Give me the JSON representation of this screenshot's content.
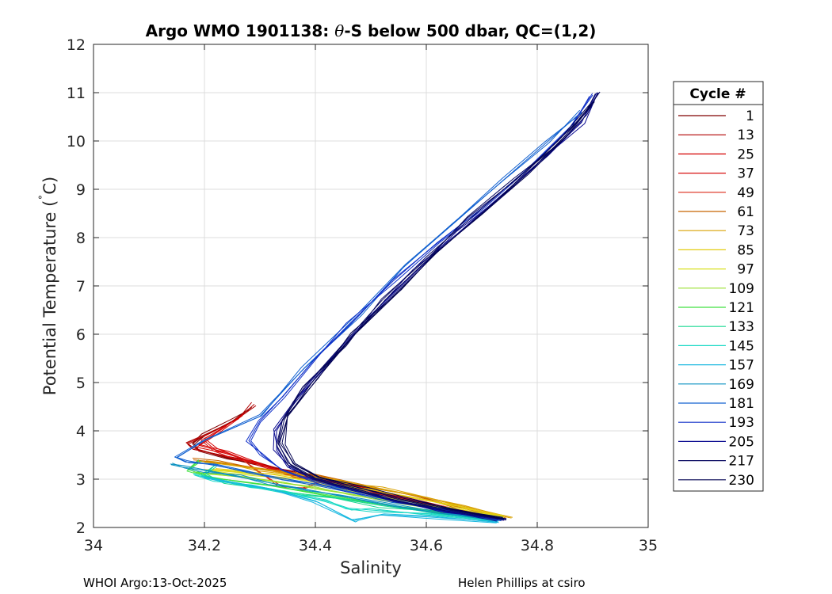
{
  "chart_data": {
    "type": "line",
    "title_prefix": "Argo WMO 1901138: ",
    "title_theta": "θ",
    "title_suffix": "-S below 500 dbar,  QC=(1,2)",
    "xlabel": "Salinity",
    "ylabel_prefix": "Potential Temperature (",
    "ylabel_deg": "˚",
    "ylabel_suffix": "C)",
    "xlim": [
      34,
      35
    ],
    "ylim": [
      2,
      12
    ],
    "xticks": [
      34,
      34.2,
      34.4,
      34.6,
      34.8,
      35
    ],
    "xtick_labels": [
      "34",
      "34.2",
      "34.4",
      "34.6",
      "34.8",
      "35"
    ],
    "yticks": [
      2,
      3,
      4,
      5,
      6,
      7,
      8,
      9,
      10,
      11,
      12
    ],
    "ytick_labels": [
      "2",
      "3",
      "4",
      "5",
      "6",
      "7",
      "8",
      "9",
      "10",
      "11",
      "12"
    ],
    "grid": true,
    "legend": {
      "title": "Cycle #",
      "placement": "outside-right",
      "entries": [
        {
          "label": "1",
          "color": "#800000"
        },
        {
          "label": "13",
          "color": "#b00000"
        },
        {
          "label": "25",
          "color": "#d40000"
        },
        {
          "label": "37",
          "color": "#d81010"
        },
        {
          "label": "49",
          "color": "#dc2a18"
        },
        {
          "label": "61",
          "color": "#c86400"
        },
        {
          "label": "73",
          "color": "#d8a000"
        },
        {
          "label": "85",
          "color": "#e4cc10"
        },
        {
          "label": "97",
          "color": "#d8e020"
        },
        {
          "label": "109",
          "color": "#9ae030"
        },
        {
          "label": "121",
          "color": "#40e040"
        },
        {
          "label": "133",
          "color": "#18d890"
        },
        {
          "label": "145",
          "color": "#18d8c4"
        },
        {
          "label": "157",
          "color": "#18b8e0"
        },
        {
          "label": "169",
          "color": "#0890c0"
        },
        {
          "label": "181",
          "color": "#1060d0"
        },
        {
          "label": "193",
          "color": "#1030c8"
        },
        {
          "label": "205",
          "color": "#0a0a90"
        },
        {
          "label": "217",
          "color": "#080860"
        },
        {
          "label": "230",
          "color": "#000050"
        }
      ]
    },
    "series": [
      {
        "name": "1",
        "color": "#800000",
        "x": [
          34.74,
          34.66,
          34.56,
          34.48,
          34.38,
          34.3,
          34.24,
          34.19,
          34.18,
          34.2,
          34.25,
          34.28
        ],
        "y": [
          2.15,
          2.35,
          2.6,
          2.85,
          3.1,
          3.3,
          3.45,
          3.6,
          3.75,
          3.9,
          4.2,
          4.45
        ]
      },
      {
        "name": "13",
        "color": "#b00000",
        "x": [
          34.73,
          34.62,
          34.52,
          34.44,
          34.36,
          34.29,
          34.23,
          34.18,
          34.17,
          34.21,
          34.26,
          34.29
        ],
        "y": [
          2.18,
          2.42,
          2.7,
          2.9,
          3.15,
          3.35,
          3.5,
          3.62,
          3.72,
          3.95,
          4.25,
          4.55
        ]
      },
      {
        "name": "25",
        "color": "#d40000",
        "x": [
          34.72,
          34.6,
          34.5,
          34.42,
          34.37,
          34.3,
          34.24,
          34.19,
          34.22,
          34.27
        ],
        "y": [
          2.2,
          2.48,
          2.78,
          2.95,
          3.05,
          3.3,
          3.55,
          3.7,
          3.95,
          4.35
        ]
      },
      {
        "name": "37",
        "color": "#d81010",
        "x": [
          34.73,
          34.63,
          34.54,
          34.45,
          34.4,
          34.35,
          34.3,
          34.26,
          34.22,
          34.2,
          34.24
        ],
        "y": [
          2.16,
          2.4,
          2.66,
          2.88,
          3.0,
          3.1,
          3.3,
          3.45,
          3.6,
          3.8,
          4.1
        ]
      },
      {
        "name": "49",
        "color": "#dc2a18",
        "x": [
          34.74,
          34.64,
          34.55,
          34.46,
          34.41,
          34.38,
          34.34,
          34.29,
          34.27
        ],
        "y": [
          2.18,
          2.4,
          2.62,
          2.85,
          2.95,
          2.8,
          2.85,
          3.2,
          3.4
        ]
      },
      {
        "name": "61",
        "color": "#c86400",
        "x": [
          34.74,
          34.66,
          34.58,
          34.5,
          34.44,
          34.4,
          34.35,
          34.28,
          34.22,
          34.18
        ],
        "y": [
          2.22,
          2.42,
          2.65,
          2.85,
          3.0,
          3.1,
          3.15,
          3.25,
          3.35,
          3.4
        ]
      },
      {
        "name": "73",
        "color": "#d8a000",
        "x": [
          34.75,
          34.67,
          34.6,
          34.52,
          34.46,
          34.42,
          34.36,
          34.3,
          34.24,
          34.2
        ],
        "y": [
          2.2,
          2.45,
          2.62,
          2.8,
          2.92,
          3.02,
          3.1,
          3.2,
          3.3,
          3.35
        ]
      },
      {
        "name": "85",
        "color": "#e4cc10",
        "x": [
          34.74,
          34.66,
          34.58,
          34.5,
          34.44,
          34.38,
          34.32,
          34.26,
          34.22
        ],
        "y": [
          2.22,
          2.44,
          2.62,
          2.78,
          2.9,
          3.0,
          3.1,
          3.18,
          3.22
        ]
      },
      {
        "name": "97",
        "color": "#d8e020",
        "x": [
          34.74,
          34.64,
          34.56,
          34.48,
          34.42,
          34.36,
          34.3,
          34.25,
          34.2
        ],
        "y": [
          2.2,
          2.38,
          2.55,
          2.72,
          2.85,
          2.98,
          3.08,
          3.15,
          3.2
        ]
      },
      {
        "name": "109",
        "color": "#9ae030",
        "x": [
          34.73,
          34.64,
          34.55,
          34.46,
          34.4,
          34.34,
          34.28,
          34.22,
          34.18
        ],
        "y": [
          2.18,
          2.36,
          2.52,
          2.7,
          2.82,
          2.92,
          3.02,
          3.1,
          3.15
        ]
      },
      {
        "name": "121",
        "color": "#40e040",
        "x": [
          34.73,
          34.62,
          34.52,
          34.44,
          34.38,
          34.32,
          34.26,
          34.21,
          34.17,
          34.19
        ],
        "y": [
          2.16,
          2.32,
          2.48,
          2.62,
          2.74,
          2.86,
          2.95,
          3.05,
          3.2,
          3.4
        ]
      },
      {
        "name": "133",
        "color": "#18d890",
        "x": [
          34.72,
          34.62,
          34.52,
          34.44,
          34.36,
          34.3,
          34.24,
          34.2,
          34.22
        ],
        "y": [
          2.15,
          2.3,
          2.45,
          2.6,
          2.72,
          2.84,
          2.95,
          3.08,
          3.3
        ]
      },
      {
        "name": "145",
        "color": "#18d8c4",
        "x": [
          34.72,
          34.6,
          34.5,
          34.46,
          34.42,
          34.34,
          34.28,
          34.22,
          34.18
        ],
        "y": [
          2.15,
          2.28,
          2.36,
          2.4,
          2.55,
          2.72,
          2.85,
          2.98,
          3.1
        ]
      },
      {
        "name": "157",
        "color": "#18b8e0",
        "x": [
          34.73,
          34.6,
          34.52,
          34.48,
          34.47,
          34.4,
          34.32,
          34.26,
          34.2
        ],
        "y": [
          2.12,
          2.22,
          2.26,
          2.18,
          2.14,
          2.55,
          2.8,
          2.92,
          3.05
        ]
      },
      {
        "name": "169",
        "color": "#0890c0",
        "x": [
          34.73,
          34.62,
          34.52,
          34.44,
          34.38,
          34.32,
          34.26,
          34.2,
          34.16,
          34.14
        ],
        "y": [
          2.14,
          2.3,
          2.5,
          2.66,
          2.8,
          2.92,
          3.05,
          3.18,
          3.25,
          3.3
        ]
      },
      {
        "name": "181",
        "color": "#1060d0",
        "x": [
          34.74,
          34.64,
          34.54,
          34.46,
          34.4,
          34.34,
          34.28,
          34.22,
          34.17,
          34.15,
          34.2,
          34.3,
          34.38,
          34.48,
          34.56,
          34.65,
          34.74,
          34.82,
          34.88
        ],
        "y": [
          2.16,
          2.35,
          2.55,
          2.75,
          2.9,
          3.02,
          3.15,
          3.28,
          3.38,
          3.45,
          3.8,
          4.3,
          5.3,
          6.4,
          7.4,
          8.3,
          9.2,
          10.0,
          10.6
        ]
      },
      {
        "name": "193",
        "color": "#1030c8",
        "x": [
          34.74,
          34.64,
          34.54,
          34.46,
          34.4,
          34.34,
          34.3,
          34.28,
          34.3,
          34.34,
          34.4,
          34.46,
          34.54,
          34.62,
          34.7,
          34.78,
          34.86,
          34.9
        ],
        "y": [
          2.15,
          2.34,
          2.58,
          2.78,
          2.95,
          3.2,
          3.5,
          3.8,
          4.2,
          4.7,
          5.5,
          6.2,
          7.1,
          7.9,
          8.6,
          9.4,
          10.3,
          10.95
        ]
      },
      {
        "name": "205",
        "color": "#0a0a90",
        "x": [
          34.73,
          34.63,
          34.54,
          34.46,
          34.4,
          34.35,
          34.33,
          34.33,
          34.36,
          34.42,
          34.5,
          34.58,
          34.66,
          34.74,
          34.82,
          34.88,
          34.91
        ],
        "y": [
          2.16,
          2.34,
          2.56,
          2.78,
          2.98,
          3.25,
          3.6,
          4.0,
          4.6,
          5.4,
          6.4,
          7.3,
          8.1,
          8.9,
          9.7,
          10.4,
          11.0
        ]
      },
      {
        "name": "217",
        "color": "#080860",
        "x": [
          34.74,
          34.64,
          34.55,
          34.47,
          34.4,
          34.35,
          34.33,
          34.34,
          34.38,
          34.45,
          34.52,
          34.6,
          34.68,
          34.76,
          34.84,
          34.89,
          34.91
        ],
        "y": [
          2.17,
          2.36,
          2.58,
          2.8,
          3.0,
          3.3,
          3.7,
          4.2,
          4.9,
          5.8,
          6.7,
          7.6,
          8.4,
          9.2,
          9.95,
          10.55,
          11.0
        ]
      },
      {
        "name": "230",
        "color": "#000050",
        "x": [
          34.74,
          34.65,
          34.56,
          34.48,
          34.41,
          34.36,
          34.34,
          34.35,
          34.4,
          34.47,
          34.55,
          34.62,
          34.7,
          34.78,
          34.85,
          34.9
        ],
        "y": [
          2.18,
          2.38,
          2.6,
          2.82,
          3.02,
          3.32,
          3.75,
          4.3,
          5.1,
          6.0,
          6.9,
          7.7,
          8.5,
          9.3,
          10.1,
          10.8
        ]
      }
    ],
    "footer_left": "WHOI Argo:13-Oct-2025",
    "footer_right": "Helen Phillips at csiro"
  }
}
